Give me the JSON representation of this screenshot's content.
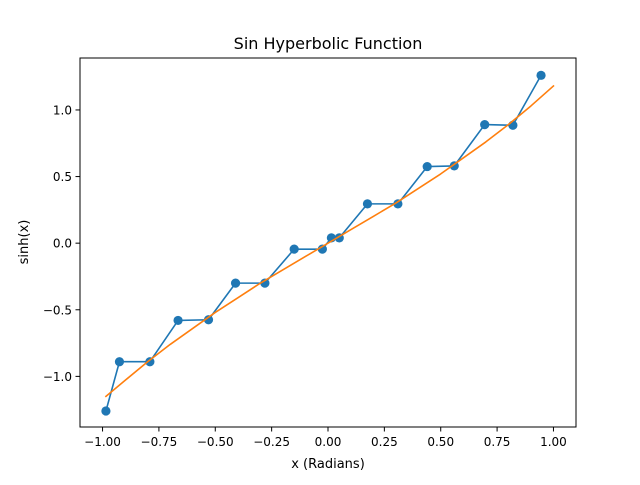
{
  "chart_data": {
    "type": "line",
    "title": "Sin Hyperbolic Function",
    "xlabel": "x (Radians)",
    "ylabel": "sinh(x)",
    "xlim": [
      -1.1,
      1.1
    ],
    "ylim": [
      -1.38,
      1.39
    ],
    "x_ticks": [
      -1.0,
      -0.75,
      -0.5,
      -0.25,
      0.0,
      0.25,
      0.5,
      0.75,
      1.0
    ],
    "x_tick_labels": [
      "−1.00",
      "−0.75",
      "−0.50",
      "−0.25",
      "0.00",
      "0.25",
      "0.50",
      "0.75",
      "1.00"
    ],
    "y_ticks": [
      -1.0,
      -0.5,
      0.0,
      0.5,
      1.0
    ],
    "y_tick_labels": [
      "−1.0",
      "−0.5",
      "0.0",
      "0.5",
      "1.0"
    ],
    "grid": false,
    "legend": "none",
    "series": [
      {
        "style": "line-marker",
        "color": "#1f77b4",
        "x": [
          -0.985,
          -0.925,
          -0.79,
          -0.665,
          -0.53,
          -0.41,
          -0.28,
          -0.15,
          -0.025,
          0.015,
          0.05,
          0.175,
          0.31,
          0.44,
          0.56,
          0.695,
          0.82,
          0.945
        ],
        "y": [
          -1.26,
          -0.89,
          -0.89,
          -0.58,
          -0.575,
          -0.3,
          -0.3,
          -0.045,
          -0.045,
          0.04,
          0.04,
          0.295,
          0.295,
          0.575,
          0.58,
          0.89,
          0.885,
          1.26
        ]
      },
      {
        "style": "line",
        "color": "#ff7f0e",
        "x": [
          -0.985,
          -0.9,
          -0.8,
          -0.7,
          -0.6,
          -0.5,
          -0.4,
          -0.3,
          -0.2,
          -0.1,
          0.0,
          0.1,
          0.2,
          0.3,
          0.4,
          0.5,
          0.6,
          0.7,
          0.8,
          0.9,
          1.0
        ],
        "y": [
          -1.15,
          -1.03,
          -0.89,
          -0.76,
          -0.64,
          -0.52,
          -0.41,
          -0.3,
          -0.2,
          -0.1,
          0.0,
          0.1,
          0.2,
          0.3,
          0.41,
          0.52,
          0.64,
          0.76,
          0.89,
          1.03,
          1.18
        ]
      }
    ]
  }
}
